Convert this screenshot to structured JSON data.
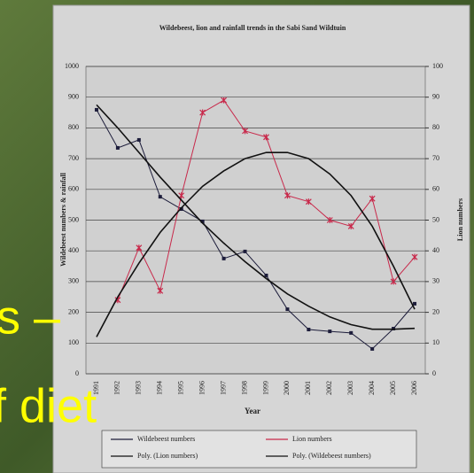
{
  "chart_data": {
    "type": "line",
    "title": "Wildebeest, lion and rainfall trends in the Sabi Sand Wildtuin",
    "x_label": "Year",
    "y_label": "Wildebeest numbers & rainfall",
    "y2_label": "Lion numbers",
    "categories": [
      "1991",
      "1992",
      "1993",
      "1994",
      "1995",
      "1996",
      "1997",
      "1998",
      "1999",
      "2000",
      "2001",
      "2002",
      "2003",
      "2004",
      "2005",
      "2006"
    ],
    "ylim": [
      0,
      1000
    ],
    "yticks": [
      0,
      100,
      200,
      300,
      400,
      500,
      600,
      700,
      800,
      900,
      1000
    ],
    "y2lim": [
      0,
      100
    ],
    "y2ticks": [
      0,
      10,
      20,
      30,
      40,
      50,
      60,
      70,
      80,
      90,
      100
    ],
    "grid": true,
    "legend": "bottom",
    "series": [
      {
        "name": "Wildebeest numbers",
        "color": "#1c1c3a",
        "marker": "square",
        "values": [
          859,
          735,
          761,
          576,
          536,
          496,
          375,
          398,
          320,
          210,
          144,
          138,
          133,
          81,
          147,
          228
        ]
      },
      {
        "name": "Lion numbers",
        "color": "#c8284a",
        "marker": "star",
        "axis": "y2",
        "values": [
          null,
          24,
          41,
          27,
          58,
          85,
          89,
          79,
          77,
          58,
          56,
          50,
          48,
          57,
          30,
          38
        ]
      },
      {
        "name": "Poly. (Lion numbers)",
        "color": "#111111",
        "marker": "none",
        "axis": "y2",
        "values": [
          12,
          25,
          36,
          46,
          54,
          61,
          66,
          70,
          72,
          72,
          70,
          65,
          58,
          48,
          35,
          21
        ]
      },
      {
        "name": "Poly. (Wildebeest numbers)",
        "color": "#111111",
        "marker": "none",
        "values": [
          875,
          800,
          720,
          640,
          565,
          490,
          425,
          365,
          310,
          260,
          220,
          185,
          160,
          145,
          145,
          148
        ]
      }
    ],
    "annotations": [
      "s –",
      "f diet"
    ]
  }
}
